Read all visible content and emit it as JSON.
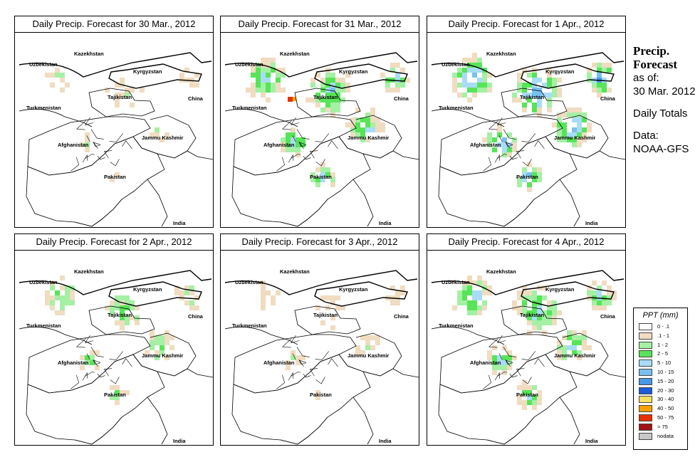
{
  "panels": [
    {
      "title": "Daily Precip. Forecast for  30 Mar., 2012",
      "level": 0
    },
    {
      "title": "Daily Precip. Forecast for  31 Mar., 2012",
      "level": 2
    },
    {
      "title": "Daily Precip. Forecast for  1 Apr., 2012",
      "level": 3
    },
    {
      "title": "Daily Precip. Forecast for  2 Apr., 2012",
      "level": 1
    },
    {
      "title": "Daily Precip. Forecast for  3 Apr., 2012",
      "level": 0
    },
    {
      "title": "Daily Precip. Forecast for  4 Apr., 2012",
      "level": 2
    }
  ],
  "map_labels": {
    "kazakhstan": "Kazekhstan",
    "uzbekistan": "Uzbekistan",
    "kyrgyzstan": "Kyrgyzstan",
    "tajikistan": "Tajikistan",
    "china": "China",
    "turkmenistan": "Turkmenistan",
    "afghanistan": "Afghanistan",
    "jammu_kashmir": "Jammu Kashmir",
    "pakistan": "Pakistan",
    "india": "India"
  },
  "sidebar": {
    "heading": "Precip. Forecast",
    "as_of_label": "as of:",
    "as_of_date": "30 Mar. 2012",
    "totals_label": "Daily Totals",
    "data_label": "Data:",
    "data_source": "NOAA-GFS"
  },
  "legend": {
    "title": "PPT (mm)",
    "items": [
      {
        "label": "0 - .1",
        "color": "#ffffff"
      },
      {
        "label": ".1 - 1",
        "color": "#f0dcc0"
      },
      {
        "label": "1 - 2",
        "color": "#a4f0a4"
      },
      {
        "label": "2 - 5",
        "color": "#58e458"
      },
      {
        "label": "5 - 10",
        "color": "#a8dcf8"
      },
      {
        "label": "10 - 15",
        "color": "#78c0f0"
      },
      {
        "label": "15 - 20",
        "color": "#4898e8"
      },
      {
        "label": "20 - 30",
        "color": "#1c5cd8"
      },
      {
        "label": "30 - 40",
        "color": "#f8e060"
      },
      {
        "label": "40 - 50",
        "color": "#f8a000"
      },
      {
        "label": "50 - 75",
        "color": "#e83000"
      },
      {
        "label": "> 75",
        "color": "#a01414"
      },
      {
        "label": "nodata",
        "color": "#c8c8c8"
      }
    ]
  }
}
